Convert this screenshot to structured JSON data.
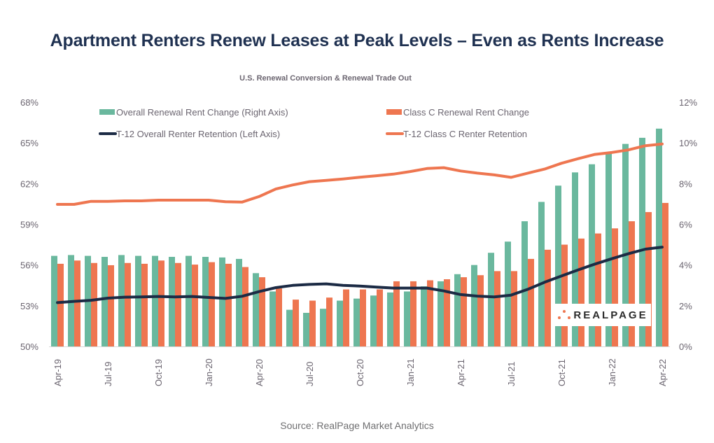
{
  "header": {
    "title": "Apartment Renters Renew Leases at Peak Levels – Even as Rents Increase",
    "subtitle": "U.S. Renewal Conversion & Renewal Trade Out"
  },
  "footer": {
    "source": "Source: RealPage Market Analytics"
  },
  "logo": {
    "text": "REALPAGE",
    "icon": "realpage-dots-icon"
  },
  "colors": {
    "overall_bar": "#6ab89e",
    "classc_bar": "#ee7650",
    "overall_line": "#1c2b45",
    "classc_line": "#ee7650",
    "axis_text": "#6b6570",
    "title": "#1f3151"
  },
  "chart_data": {
    "type": "bar",
    "title": "U.S. Renewal Conversion & Renewal Trade Out",
    "xlabel": "",
    "ylabel_left": "",
    "ylabel_right": "",
    "ylim_left": [
      50,
      68
    ],
    "ylim_right": [
      0,
      12
    ],
    "left_ticks": [
      "50%",
      "53%",
      "56%",
      "59%",
      "62%",
      "65%",
      "68%"
    ],
    "left_tick_values": [
      50,
      53,
      56,
      59,
      62,
      65,
      68
    ],
    "right_ticks": [
      "0%",
      "2%",
      "4%",
      "6%",
      "8%",
      "10%",
      "12%"
    ],
    "right_tick_values": [
      0,
      2,
      4,
      6,
      8,
      10,
      12
    ],
    "grid": false,
    "legend_position": "top",
    "categories": [
      "Apr-19",
      "May-19",
      "Jun-19",
      "Jul-19",
      "Aug-19",
      "Sep-19",
      "Oct-19",
      "Nov-19",
      "Dec-19",
      "Jan-20",
      "Feb-20",
      "Mar-20",
      "Apr-20",
      "May-20",
      "Jun-20",
      "Jul-20",
      "Aug-20",
      "Sep-20",
      "Oct-20",
      "Nov-20",
      "Dec-20",
      "Jan-21",
      "Feb-21",
      "Mar-21",
      "Apr-21",
      "May-21",
      "Jun-21",
      "Jul-21",
      "Aug-21",
      "Sep-21",
      "Oct-21",
      "Nov-21",
      "Dec-21",
      "Jan-22",
      "Feb-22",
      "Mar-22",
      "Apr-22"
    ],
    "x_tick_labels": [
      "Apr-19",
      "Jul-19",
      "Oct-19",
      "Jan-20",
      "Apr-20",
      "Jul-20",
      "Oct-20",
      "Jan-21",
      "Apr-21",
      "Jul-21",
      "Oct-21",
      "Jan-22",
      "Apr-22"
    ],
    "series": [
      {
        "name": "Overall Renewal Rent Change (Right Axis)",
        "type": "bar",
        "axis": "right",
        "legend_symbol": "bar",
        "values": [
          4.45,
          4.49,
          4.45,
          4.4,
          4.49,
          4.45,
          4.45,
          4.4,
          4.45,
          4.4,
          4.37,
          4.3,
          3.6,
          2.7,
          1.8,
          1.65,
          1.85,
          2.25,
          2.35,
          2.5,
          2.65,
          2.7,
          2.95,
          3.2,
          3.55,
          4.0,
          4.6,
          5.15,
          6.15,
          7.1,
          7.9,
          8.55,
          8.95,
          9.55,
          9.95,
          10.25,
          10.7
        ]
      },
      {
        "name": "Class C Renewal Rent Change",
        "type": "bar",
        "axis": "right",
        "legend_symbol": "bar",
        "values": [
          4.06,
          4.22,
          4.1,
          3.99,
          4.1,
          4.06,
          4.22,
          4.1,
          4.02,
          4.14,
          4.06,
          3.9,
          3.4,
          2.85,
          2.3,
          2.25,
          2.4,
          2.8,
          2.8,
          2.8,
          3.2,
          3.2,
          3.25,
          3.3,
          3.4,
          3.5,
          3.7,
          3.7,
          4.3,
          4.75,
          5.0,
          5.3,
          5.55,
          5.8,
          6.15,
          6.6,
          7.05
        ]
      },
      {
        "name": "T-12 Overall Renter Retention (Left Axis)",
        "type": "line",
        "axis": "left",
        "legend_symbol": "line",
        "values": [
          53.23,
          53.32,
          53.4,
          53.56,
          53.63,
          53.65,
          53.68,
          53.65,
          53.68,
          53.61,
          53.54,
          53.7,
          54.04,
          54.33,
          54.5,
          54.57,
          54.61,
          54.5,
          54.45,
          54.37,
          54.3,
          54.3,
          54.3,
          54.09,
          53.82,
          53.71,
          53.65,
          53.78,
          54.21,
          54.73,
          55.19,
          55.64,
          56.07,
          56.46,
          56.84,
          57.17,
          57.32
        ]
      },
      {
        "name": "T-12 Class C Renter Retention",
        "type": "line",
        "axis": "left",
        "legend_symbol": "line",
        "values": [
          60.47,
          60.47,
          60.69,
          60.69,
          60.73,
          60.73,
          60.78,
          60.78,
          60.78,
          60.78,
          60.66,
          60.64,
          61.04,
          61.6,
          61.9,
          62.14,
          62.24,
          62.34,
          62.47,
          62.58,
          62.7,
          62.89,
          63.11,
          63.17,
          62.93,
          62.77,
          62.64,
          62.46,
          62.77,
          63.07,
          63.5,
          63.84,
          64.15,
          64.29,
          64.49,
          64.79,
          64.92
        ]
      }
    ]
  }
}
